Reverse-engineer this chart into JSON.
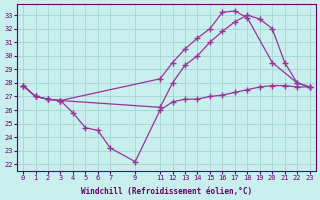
{
  "xlabel": "Windchill (Refroidissement éolien,°C)",
  "bg_color": "#c8eeed",
  "line_color": "#993399",
  "grid_color": "#9ecfcb",
  "xlim": [
    -0.5,
    23.5
  ],
  "ylim": [
    21.5,
    33.8
  ],
  "yticks": [
    22,
    23,
    24,
    25,
    26,
    27,
    28,
    29,
    30,
    31,
    32,
    33
  ],
  "xticks": [
    0,
    1,
    2,
    3,
    4,
    5,
    6,
    7,
    9,
    11,
    12,
    13,
    14,
    15,
    16,
    17,
    18,
    19,
    20,
    21,
    22,
    23
  ],
  "lines": [
    {
      "x": [
        0,
        1,
        2,
        3,
        4,
        5,
        6,
        7,
        9,
        11,
        12,
        13,
        14,
        15,
        16,
        17,
        18,
        19,
        20,
        21,
        22,
        23
      ],
      "y": [
        27.8,
        27.0,
        26.8,
        26.7,
        25.8,
        24.7,
        24.5,
        23.2,
        22.2,
        26.0,
        26.6,
        26.8,
        26.8,
        27.0,
        27.1,
        27.3,
        27.5,
        27.7,
        27.8,
        27.8,
        27.7,
        27.7
      ]
    },
    {
      "x": [
        0,
        1,
        2,
        3,
        11,
        12,
        13,
        14,
        15,
        16,
        17,
        18,
        19,
        20,
        21,
        22,
        23
      ],
      "y": [
        27.8,
        27.0,
        26.8,
        26.7,
        26.2,
        28.0,
        29.3,
        30.0,
        31.0,
        31.8,
        32.5,
        33.0,
        32.7,
        32.0,
        29.5,
        28.0,
        27.7
      ]
    },
    {
      "x": [
        0,
        1,
        2,
        3,
        11,
        12,
        13,
        14,
        15,
        16,
        17,
        18,
        20,
        22,
        23
      ],
      "y": [
        27.8,
        27.0,
        26.8,
        26.7,
        28.3,
        29.5,
        30.5,
        31.3,
        32.0,
        33.2,
        33.3,
        32.8,
        29.5,
        28.0,
        27.7
      ]
    }
  ]
}
